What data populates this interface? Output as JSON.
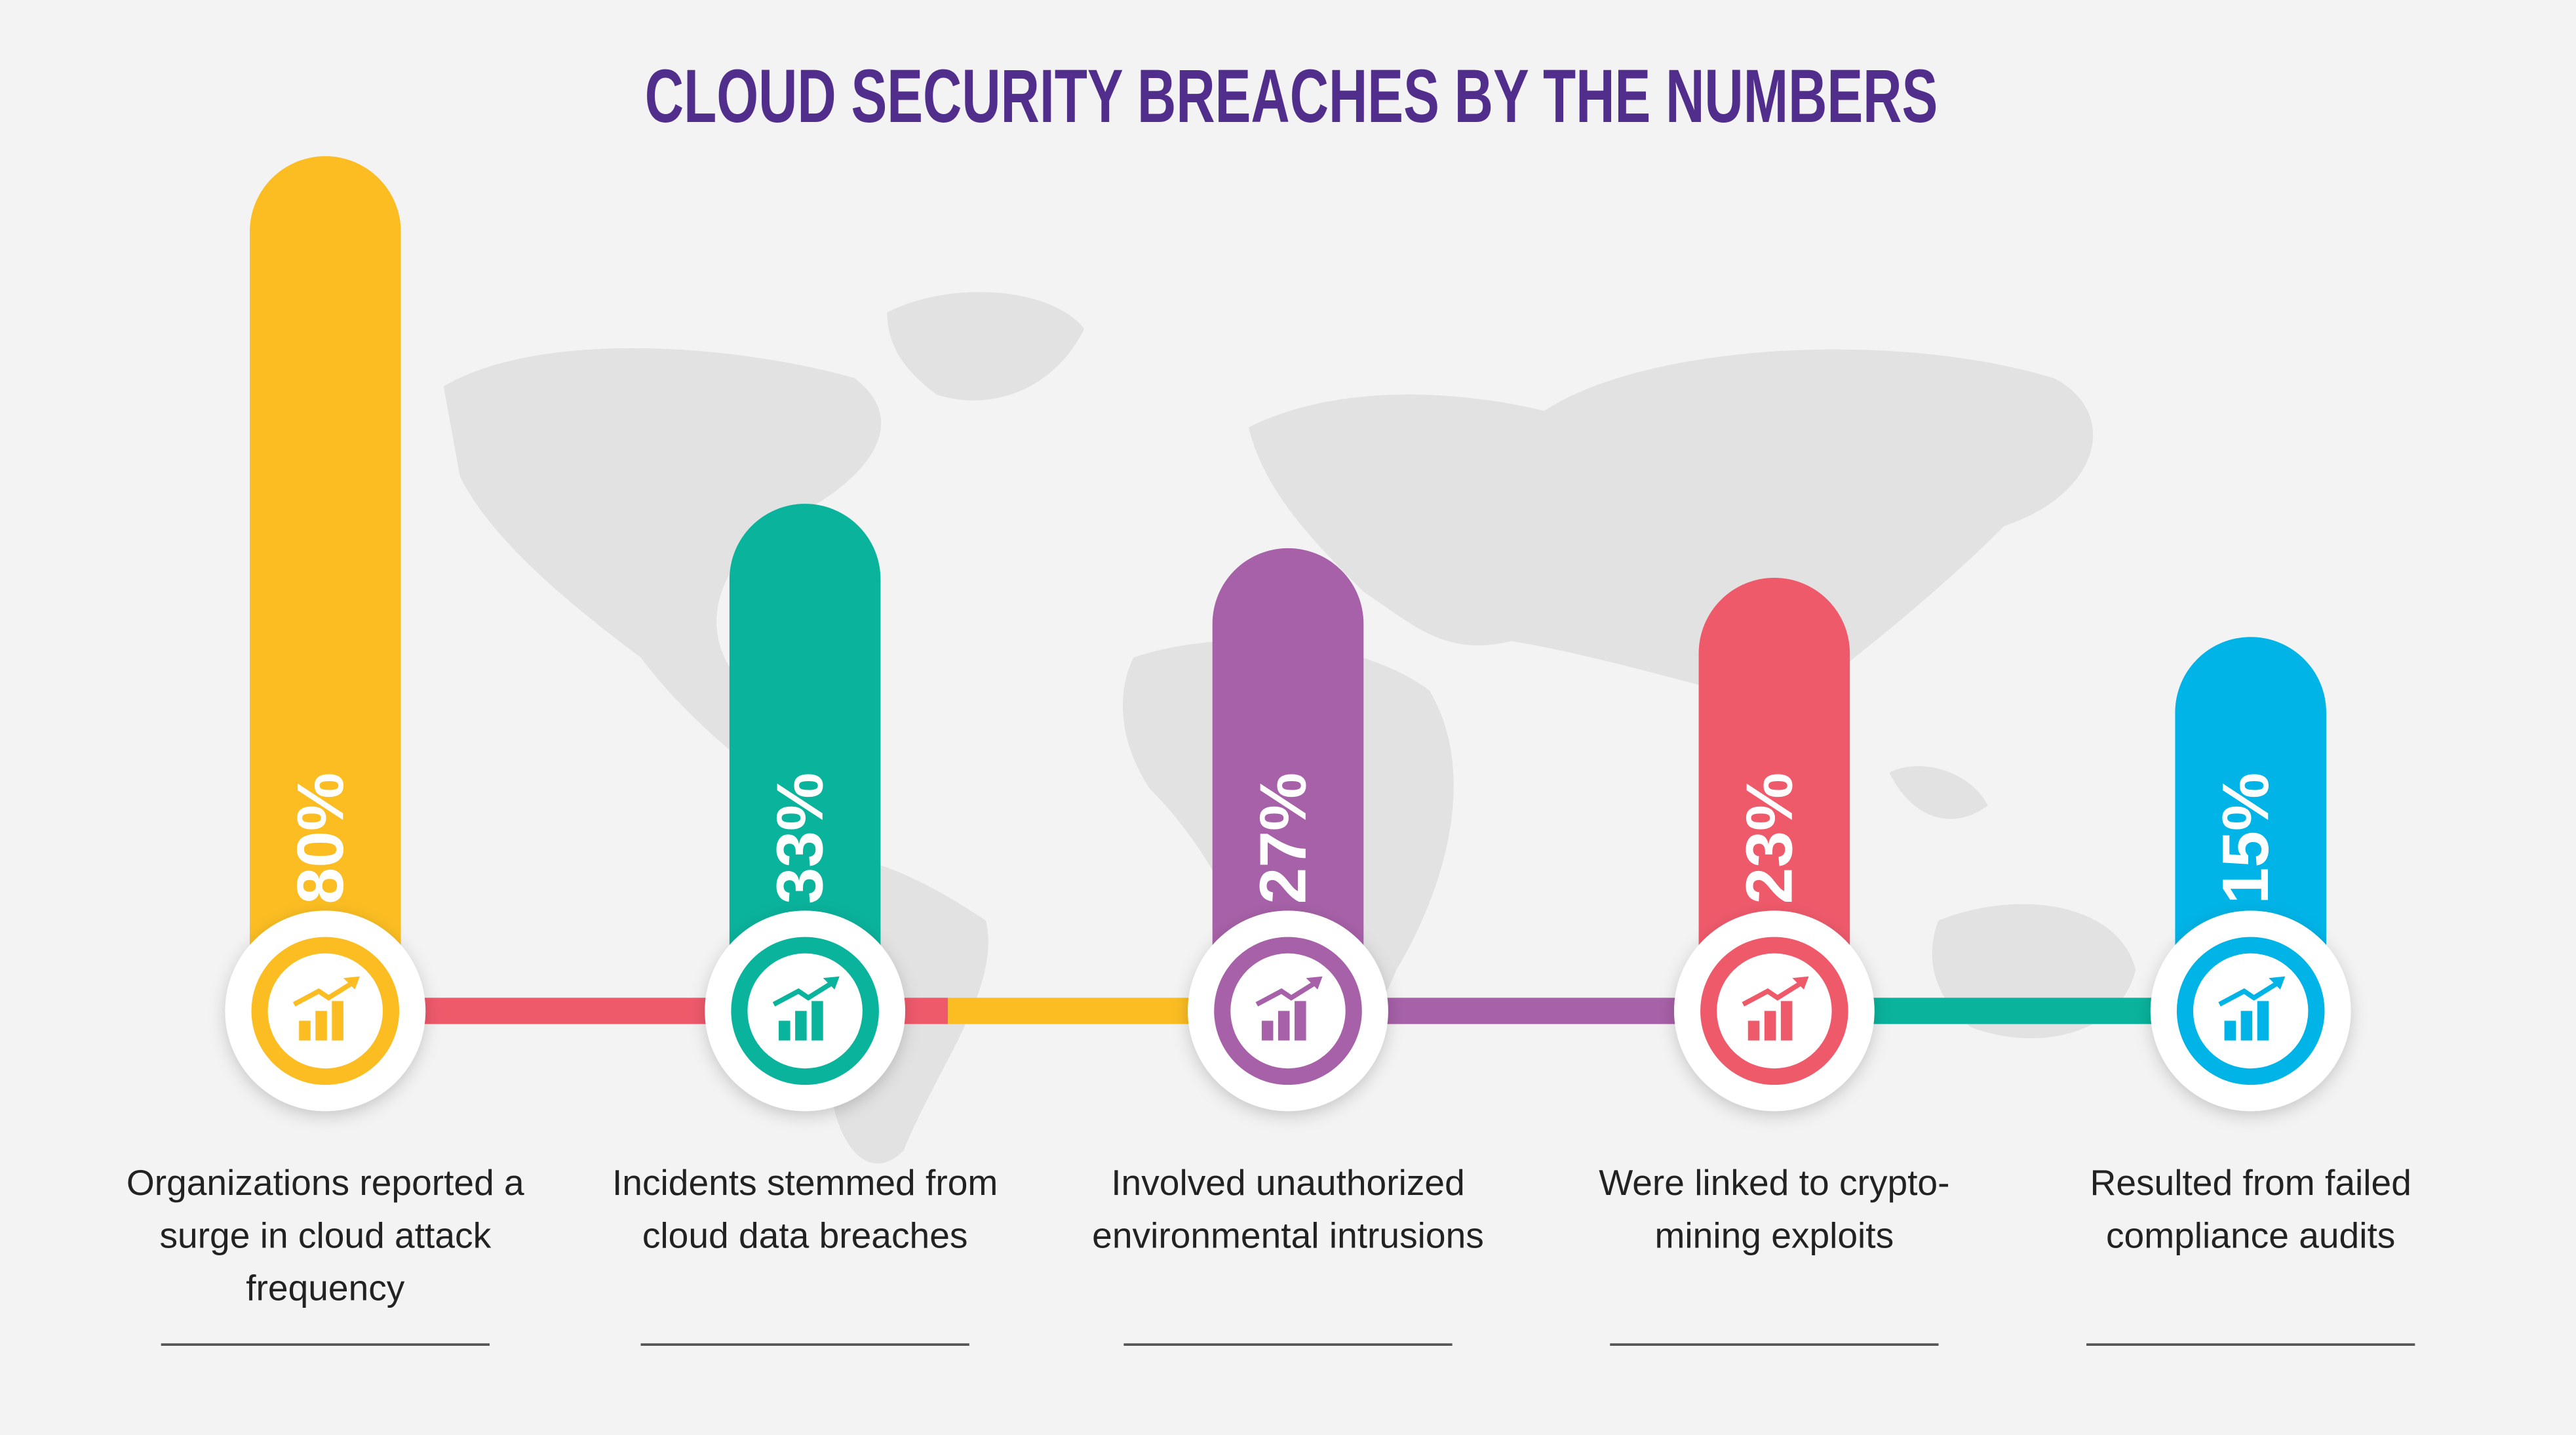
{
  "chart_data": {
    "type": "bar",
    "title": "CLOUD SECURITY BREACHES BY THE NUMBERS",
    "categories": [
      "Organizations reported a surge in cloud attack frequency",
      "Incidents stemmed from cloud data breaches",
      "Involved unauthorized environmental intrusions",
      "Were linked to crypto-mining exploits",
      "Resulted from failed compliance audits"
    ],
    "values": [
      80,
      33,
      27,
      23,
      15
    ],
    "value_labels": [
      "80%",
      "33%",
      "27%",
      "23%",
      "15%"
    ],
    "colors": [
      "#fbbd22",
      "#0ab39c",
      "#a761a8",
      "#ef5a6b",
      "#00b4e8"
    ]
  }
}
